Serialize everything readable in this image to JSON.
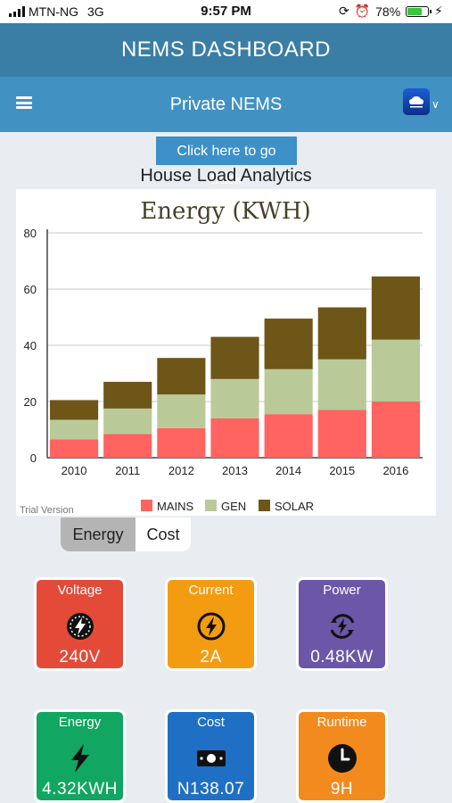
{
  "status_bar": {
    "carrier": "MTN-NG",
    "network": "3G",
    "time": "9:57 PM",
    "battery": "78%",
    "battery_level": 0.78
  },
  "app_header": {
    "title": "NEMS DASHBOARD"
  },
  "nav": {
    "title": "Private NEMS",
    "menu_icon": "hamburger-icon",
    "logo_icon": "cyberhub-logo-icon",
    "dropdown_icon": "chevron-down-icon"
  },
  "back_button": {
    "label": "Click here to go back"
  },
  "section_title": "House Load Analytics",
  "chart_data": {
    "type": "bar",
    "stacked": true,
    "title": "Energy (KWH)",
    "categories": [
      "2010",
      "2011",
      "2012",
      "2013",
      "2014",
      "2015",
      "2016"
    ],
    "series": [
      {
        "name": "MAINS",
        "color": "#ff6461",
        "values": [
          6.5,
          8.5,
          10.5,
          14,
          15.5,
          17,
          20
        ]
      },
      {
        "name": "GEN",
        "color": "#b9ca98",
        "values": [
          7,
          9,
          12,
          14,
          16,
          18,
          22
        ]
      },
      {
        "name": "SOLAR",
        "color": "#6e5618",
        "values": [
          7,
          9.5,
          13,
          15,
          18,
          18.5,
          22.5
        ]
      }
    ],
    "ylim": [
      0,
      80
    ],
    "yticks": [
      0,
      20,
      40,
      60,
      80
    ],
    "grid": true,
    "legend": "bottom",
    "watermark": "Trial Version"
  },
  "tabs": [
    {
      "label": "Energy",
      "active": true
    },
    {
      "label": "Cost",
      "active": false
    }
  ],
  "tiles": [
    {
      "label": "Voltage",
      "value": "240V",
      "color": "#e44a38",
      "icon": "speedometer-bolt-icon"
    },
    {
      "label": "Current",
      "value": "2A",
      "color": "#f39c12",
      "icon": "bolt-circle-icon"
    },
    {
      "label": "Power",
      "value": "0.48KW",
      "color": "#6b56a8",
      "icon": "power-cycle-icon"
    },
    {
      "label": "Energy",
      "value": "4.32KWH",
      "color": "#11a661",
      "icon": "bolt-icon"
    },
    {
      "label": "Cost",
      "value": "N138.07",
      "color": "#1f6fc5",
      "icon": "money-icon"
    },
    {
      "label": "Runtime",
      "value": "9H",
      "color": "#f38a1d",
      "icon": "clock-icon"
    }
  ]
}
